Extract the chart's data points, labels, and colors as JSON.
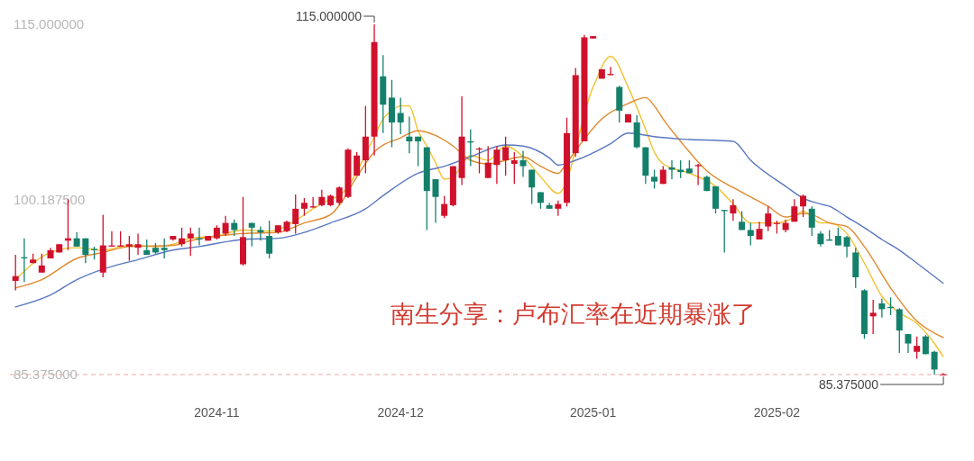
{
  "chart_data": {
    "type": "candlestick",
    "categories": [
      null,
      null,
      null,
      null,
      null,
      null,
      null,
      null,
      null,
      null,
      null,
      null,
      null,
      null,
      null,
      null,
      null,
      null,
      null,
      null,
      null,
      null,
      null,
      "2024-11",
      null,
      null,
      null,
      null,
      null,
      null,
      null,
      null,
      null,
      null,
      null,
      null,
      null,
      null,
      null,
      null,
      null,
      null,
      null,
      null,
      "2024-12",
      null,
      null,
      null,
      null,
      null,
      null,
      null,
      null,
      null,
      null,
      null,
      null,
      null,
      null,
      null,
      null,
      null,
      null,
      null,
      null,
      null,
      "2025-01",
      null,
      null,
      null,
      null,
      null,
      null,
      null,
      null,
      null,
      null,
      null,
      null,
      null,
      null,
      null,
      null,
      null,
      null,
      null,
      null,
      "2025-02",
      null,
      null,
      null,
      null,
      null,
      null,
      null,
      null,
      null,
      null,
      null,
      null,
      null,
      null,
      null,
      null,
      null,
      null,
      null
    ],
    "series": [
      {
        "type": "candlestick",
        "ohlc": [
          [
            93.3,
            95.5,
            92.5,
            93.7
          ],
          [
            95.3,
            96.9,
            93.2,
            95.2
          ],
          [
            94.8,
            95.6,
            94.8,
            95.1
          ],
          [
            94.0,
            95.6,
            94.0,
            94.6
          ],
          [
            95.2,
            96.1,
            95.2,
            95.9
          ],
          [
            95.7,
            96.4,
            95.7,
            96.4
          ],
          [
            96.7,
            100.2,
            95.9,
            96.9
          ],
          [
            96.9,
            97.4,
            96.2,
            96.2
          ],
          [
            96.9,
            96.9,
            94.8,
            95.5
          ],
          [
            96.0,
            96.2,
            95.1,
            95.9
          ],
          [
            94.0,
            98.9,
            93.6,
            96.3
          ],
          [
            96.2,
            97.5,
            96.2,
            96.3
          ],
          [
            96.2,
            97.5,
            96.2,
            96.3
          ],
          [
            96.2,
            97.1,
            95.0,
            96.4
          ],
          [
            96.1,
            97.3,
            95.5,
            96.4
          ],
          [
            95.9,
            96.8,
            95.5,
            95.5
          ],
          [
            96.1,
            96.5,
            95.6,
            95.7
          ],
          [
            96.1,
            96.9,
            95.2,
            95.9
          ],
          [
            96.8,
            97.1,
            96.7,
            97.1
          ],
          [
            96.4,
            97.8,
            96.2,
            96.9
          ],
          [
            96.9,
            97.8,
            95.4,
            97.3
          ],
          [
            96.9,
            97.8,
            96.3,
            96.8
          ],
          [
            96.7,
            97.1,
            96.7,
            97.1
          ],
          [
            96.9,
            98.0,
            96.8,
            97.8
          ],
          [
            97.3,
            98.8,
            97.1,
            98.2
          ],
          [
            98.2,
            98.5,
            97.1,
            97.6
          ],
          [
            94.7,
            100.4,
            94.6,
            97.0
          ],
          [
            98.2,
            98.2,
            96.2,
            97.8
          ],
          [
            97.6,
            97.9,
            96.7,
            97.4
          ],
          [
            97.1,
            98.4,
            95.2,
            95.6
          ],
          [
            97.4,
            98.0,
            97.3,
            98.0
          ],
          [
            97.5,
            98.4,
            97.4,
            98.3
          ],
          [
            98.1,
            100.6,
            97.3,
            99.4
          ],
          [
            99.4,
            100.3,
            98.8,
            99.9
          ],
          [
            99.5,
            100.4,
            99.5,
            99.6
          ],
          [
            99.7,
            101.0,
            99.6,
            100.4
          ],
          [
            99.7,
            100.6,
            99.6,
            100.5
          ],
          [
            99.9,
            101.3,
            99.7,
            101.2
          ],
          [
            100.4,
            104.5,
            100.3,
            104.4
          ],
          [
            102.2,
            104.2,
            102.2,
            103.9
          ],
          [
            103.5,
            108.1,
            102.4,
            105.5
          ],
          [
            105.5,
            115.0,
            103.9,
            113.5
          ],
          [
            110.6,
            112.4,
            105.8,
            108.2
          ],
          [
            108.8,
            110.3,
            104.6,
            106.7
          ],
          [
            107.5,
            108.8,
            105.7,
            106.7
          ],
          [
            105.5,
            107.2,
            104.1,
            105.1
          ],
          [
            105.5,
            105.5,
            103.0,
            105.1
          ],
          [
            104.6,
            104.6,
            97.6,
            100.9
          ],
          [
            101.9,
            101.9,
            98.2,
            100.4
          ],
          [
            98.8,
            100.5,
            98.6,
            99.8
          ],
          [
            99.7,
            103.0,
            99.6,
            103.0
          ],
          [
            102.0,
            108.9,
            101.4,
            105.5
          ],
          [
            105.1,
            106.1,
            103.0,
            105.0
          ],
          [
            104.5,
            104.6,
            102.4,
            104.5
          ],
          [
            102.0,
            104.7,
            102.0,
            103.3
          ],
          [
            103.1,
            104.7,
            101.5,
            104.4
          ],
          [
            103.5,
            105.5,
            102.2,
            104.6
          ],
          [
            103.2,
            104.2,
            101.5,
            103.5
          ],
          [
            103.5,
            104.3,
            102.1,
            103.0
          ],
          [
            102.7,
            102.7,
            99.8,
            101.2
          ],
          [
            100.8,
            100.8,
            99.4,
            99.9
          ],
          [
            99.7,
            99.9,
            99.4,
            99.4
          ],
          [
            99.4,
            100.1,
            98.8,
            99.8
          ],
          [
            99.9,
            107.1,
            99.6,
            105.8
          ],
          [
            104.1,
            111.3,
            103.8,
            110.7
          ],
          [
            105.1,
            114.1,
            105.1,
            113.9
          ],
          [
            113.8,
            114.0,
            113.8,
            114.0
          ],
          [
            110.4,
            111.2,
            110.4,
            111.2
          ],
          [
            110.7,
            111.4,
            110.7,
            110.8
          ],
          [
            109.7,
            109.8,
            106.7,
            107.7
          ],
          [
            106.7,
            107.4,
            106.7,
            107.4
          ],
          [
            106.7,
            107.3,
            104.5,
            104.6
          ],
          [
            104.6,
            104.6,
            101.5,
            102.2
          ],
          [
            102.1,
            102.7,
            101.1,
            101.7
          ],
          [
            101.5,
            103.0,
            101.5,
            102.7
          ],
          [
            102.9,
            103.5,
            101.9,
            102.7
          ],
          [
            102.7,
            103.5,
            102.0,
            102.5
          ],
          [
            102.8,
            103.5,
            102.4,
            102.4
          ],
          [
            103.0,
            103.2,
            101.4,
            103.1
          ],
          [
            102.1,
            102.2,
            100.9,
            100.9
          ],
          [
            101.3,
            101.3,
            99.0,
            99.4
          ],
          [
            99.3,
            99.3,
            95.7,
            99.2
          ],
          [
            99.0,
            100.2,
            98.4,
            99.7
          ],
          [
            98.3,
            99.2,
            97.6,
            97.6
          ],
          [
            97.6,
            98.2,
            96.3,
            97.1
          ],
          [
            96.8,
            98.3,
            96.8,
            97.7
          ],
          [
            97.9,
            99.6,
            97.5,
            99.0
          ],
          [
            98.2,
            98.4,
            97.3,
            98.2
          ],
          [
            97.6,
            98.5,
            97.4,
            98.2
          ],
          [
            98.3,
            100.2,
            98.3,
            99.6
          ],
          [
            99.6,
            100.6,
            98.7,
            100.5
          ],
          [
            99.4,
            99.6,
            97.1,
            97.8
          ],
          [
            97.3,
            97.5,
            96.2,
            96.4
          ],
          [
            96.8,
            97.6,
            96.7,
            96.7
          ],
          [
            97.1,
            97.8,
            96.3,
            96.3
          ],
          [
            97.0,
            97.1,
            95.3,
            96.2
          ],
          [
            95.7,
            96.1,
            92.7,
            93.6
          ],
          [
            92.5,
            92.6,
            88.4,
            88.8
          ],
          [
            90.3,
            91.7,
            88.8,
            90.6
          ],
          [
            91.4,
            91.8,
            90.2,
            90.9
          ],
          [
            91.1,
            91.9,
            90.4,
            91.0
          ],
          [
            90.9,
            91.0,
            87.2,
            89.1
          ],
          [
            88.8,
            88.8,
            87.2,
            88.0
          ],
          [
            87.3,
            88.6,
            86.7,
            87.8
          ],
          [
            88.6,
            88.7,
            87.1,
            87.1
          ],
          [
            87.3,
            87.4,
            85.375,
            85.8
          ],
          [
            85.4,
            85.5,
            85.4,
            85.4
          ]
        ],
        "colors": [
          "#d0112b",
          "#14806b",
          "#d0112b",
          "#d0112b",
          "#d0112b",
          "#d0112b",
          "#d0112b",
          "#14806b",
          "#14806b",
          "#14806b",
          "#d0112b",
          "#d0112b",
          "#d0112b",
          "#d0112b",
          "#d0112b",
          "#14806b",
          "#14806b",
          "#14806b",
          "#d0112b",
          "#d0112b",
          "#d0112b",
          "#14806b",
          "#d0112b",
          "#d0112b",
          "#d0112b",
          "#14806b",
          "#d0112b",
          "#14806b",
          "#14806b",
          "#14806b",
          "#d0112b",
          "#d0112b",
          "#d0112b",
          "#d0112b",
          "#d0112b",
          "#d0112b",
          "#d0112b",
          "#d0112b",
          "#d0112b",
          "#d0112b",
          "#d0112b",
          "#d0112b",
          "#14806b",
          "#14806b",
          "#14806b",
          "#14806b",
          "#14806b",
          "#14806b",
          "#14806b",
          "#d0112b",
          "#d0112b",
          "#d0112b",
          "#14806b",
          "#d0112b",
          "#d0112b",
          "#d0112b",
          "#d0112b",
          "#d0112b",
          "#14806b",
          "#14806b",
          "#14806b",
          "#14806b",
          "#d0112b",
          "#d0112b",
          "#d0112b",
          "#d0112b",
          "#d0112b",
          "#d0112b",
          "#d0112b",
          "#14806b",
          "#d0112b",
          "#14806b",
          "#14806b",
          "#14806b",
          "#d0112b",
          "#14806b",
          "#14806b",
          "#14806b",
          "#d0112b",
          "#14806b",
          "#14806b",
          "#14806b",
          "#d0112b",
          "#14806b",
          "#14806b",
          "#d0112b",
          "#d0112b",
          "#d0112b",
          "#d0112b",
          "#d0112b",
          "#d0112b",
          "#14806b",
          "#14806b",
          "#14806b",
          "#14806b",
          "#14806b",
          "#14806b",
          "#14806b",
          "#d0112b",
          "#14806b",
          "#14806b",
          "#14806b",
          "#14806b",
          "#d0112b",
          "#14806b",
          "#14806b",
          "#d0112b"
        ]
      },
      {
        "type": "line",
        "color": "#f2c230",
        "values": [
          93.4,
          null,
          null,
          null,
          95.7,
          null,
          null,
          96.1,
          null,
          null,
          95.9,
          null,
          null,
          96.3,
          null,
          null,
          96.2,
          null,
          96.4,
          null,
          96.9,
          null,
          null,
          97.1,
          null,
          null,
          97.6,
          null,
          null,
          97.5,
          null,
          null,
          98.4,
          null,
          99.4,
          null,
          100.2,
          100.5,
          null,
          null,
          null,
          105.5,
          107.0,
          107.7,
          108.1,
          108.1,
          106.0,
          104.7,
          103.3,
          101.9,
          102.1,
          null,
          103.9,
          null,
          103.5,
          null,
          104.7,
          null,
          103.8,
          null,
          102.1,
          null,
          100.7,
          null,
          null,
          null,
          109.7,
          null,
          112.3,
          null,
          109.7,
          null,
          106.1,
          104.2,
          103.2,
          null,
          null,
          102.4,
          null,
          null,
          101.3,
          null,
          99.8,
          null,
          98.2,
          null,
          null,
          98.2,
          null,
          98.7,
          99.2,
          null,
          98.2,
          98.2,
          null,
          97.3,
          null,
          94.8,
          null,
          92.0,
          null,
          90.6,
          null,
          89.7,
          null,
          88.0,
          86.9
        ]
      },
      {
        "type": "line",
        "color": "#e0892f",
        "values": [
          92.7,
          null,
          null,
          93.4,
          null,
          null,
          null,
          95.2,
          null,
          null,
          95.7,
          null,
          null,
          96.2,
          null,
          null,
          null,
          null,
          96.3,
          null,
          96.7,
          null,
          null,
          null,
          null,
          null,
          97.3,
          null,
          null,
          null,
          97.4,
          null,
          null,
          98.2,
          null,
          null,
          98.9,
          99.7,
          null,
          102.1,
          null,
          104.2,
          null,
          null,
          105.4,
          null,
          106.0,
          null,
          105.6,
          null,
          104.7,
          null,
          103.5,
          null,
          103.2,
          null,
          null,
          null,
          103.8,
          null,
          103.0,
          null,
          102.4,
          103.3,
          null,
          105.3,
          null,
          107.0,
          null,
          null,
          108.3,
          null,
          108.8,
          108.1,
          107.0,
          null,
          105.1,
          null,
          null,
          102.6,
          null,
          null,
          null,
          100.8,
          null,
          null,
          99.6,
          null,
          98.7,
          null,
          99.0,
          98.9,
          null,
          98.2,
          null,
          97.9,
          null,
          96.2,
          null,
          null,
          92.7,
          null,
          null,
          89.9,
          null,
          null,
          88.5
        ]
      },
      {
        "type": "line",
        "color": "#5a78c0",
        "values": [
          91.1,
          null,
          null,
          null,
          92.1,
          null,
          null,
          93.4,
          null,
          null,
          94.3,
          null,
          null,
          null,
          95.1,
          null,
          null,
          null,
          95.9,
          null,
          null,
          96.2,
          null,
          null,
          null,
          null,
          96.8,
          null,
          null,
          null,
          96.9,
          null,
          null,
          97.4,
          null,
          null,
          98.2,
          null,
          null,
          null,
          99.4,
          null,
          100.5,
          null,
          null,
          null,
          102.4,
          null,
          null,
          103.0,
          null,
          null,
          103.8,
          null,
          null,
          null,
          104.8,
          null,
          104.7,
          null,
          null,
          103.7,
          103.1,
          null,
          103.5,
          null,
          null,
          null,
          104.9,
          null,
          105.8,
          null,
          null,
          105.5,
          null,
          null,
          105.3,
          null,
          null,
          null,
          null,
          null,
          105.1,
          null,
          103.5,
          null,
          null,
          null,
          101.3,
          null,
          100.3,
          null,
          99.8,
          99.6,
          null,
          98.7,
          null,
          97.8,
          null,
          96.8,
          null,
          95.9,
          null,
          94.8,
          null,
          null,
          93.1
        ]
      }
    ],
    "ylim": [
      85.375,
      115
    ],
    "yticks": [
      {
        "value": 85.375,
        "label": "85.375000"
      },
      {
        "value": 100.1875,
        "label": "100.187500"
      },
      {
        "value": 115,
        "label": "115.000000"
      }
    ],
    "ref_lines": [
      {
        "axis": "y",
        "value": 85.375,
        "color": "#e8a8a8",
        "line_style": "dashed"
      }
    ],
    "annotations": [
      "115.000000",
      "85.375000",
      "南生分享：卢布汇率在近期暴涨了"
    ]
  }
}
